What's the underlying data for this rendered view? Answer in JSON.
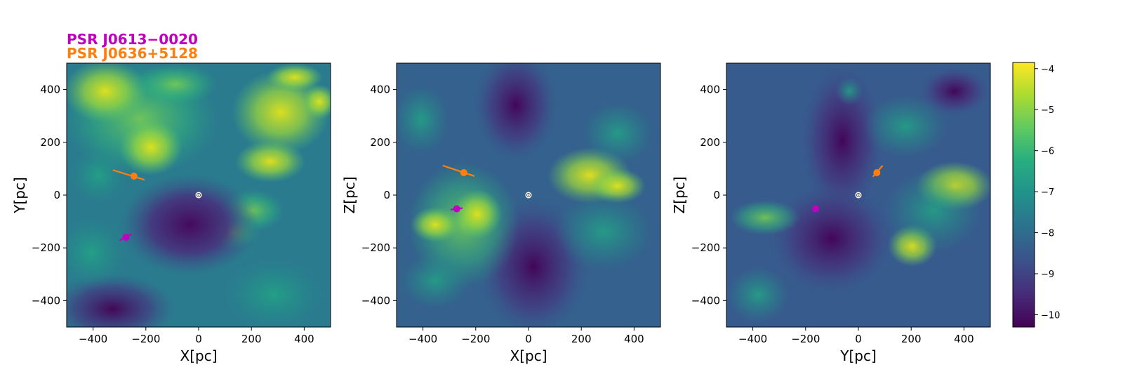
{
  "chart_data": {
    "type": "heatmap",
    "legend": [
      {
        "name": "PSR J0613−0020",
        "color": "#c000c0"
      },
      {
        "name": "PSR J0636+5128",
        "color": "#ff7f0e"
      }
    ],
    "colorbar": {
      "range": [
        -10.3,
        -3.85
      ],
      "ticks": [
        -10,
        -9,
        -8,
        -7,
        -6,
        -5,
        -4
      ],
      "tick_labels": [
        "−10",
        "−9",
        "−8",
        "−7",
        "−6",
        "−5",
        "−4"
      ],
      "colormap": "viridis"
    },
    "panels": [
      {
        "id": "xy",
        "xlabel": "X[pc]",
        "ylabel": "Y[pc]",
        "xlim": [
          -500,
          500
        ],
        "ylim": [
          -500,
          500
        ],
        "xticks": [
          -400,
          -200,
          0,
          200,
          400
        ],
        "yticks": [
          -400,
          -200,
          0,
          200,
          400
        ],
        "xtick_labels": [
          "−400",
          "−200",
          "0",
          "200",
          "400"
        ],
        "ytick_labels": [
          "−400",
          "−200",
          "0",
          "200",
          "400"
        ],
        "pulsars": [
          {
            "name": "PSR J0613−0020",
            "x": -275,
            "y": -160,
            "seg": [
              [
                -300,
                -172
              ],
              [
                -255,
                -148
              ]
            ]
          },
          {
            "name": "PSR J0636+5128",
            "x": -245,
            "y": 72,
            "seg": [
              [
                -325,
                95
              ],
              [
                -205,
                58
              ]
            ]
          }
        ]
      },
      {
        "id": "xz",
        "xlabel": "X[pc]",
        "ylabel": "Z[pc]",
        "xlim": [
          -500,
          500
        ],
        "ylim": [
          -500,
          500
        ],
        "xticks": [
          -400,
          -200,
          0,
          200,
          400
        ],
        "yticks": [
          -400,
          -200,
          0,
          200,
          400
        ],
        "xtick_labels": [
          "−400",
          "−200",
          "0",
          "200",
          "400"
        ],
        "ytick_labels": [
          "−400",
          "−200",
          "0",
          "200",
          "400"
        ],
        "pulsars": [
          {
            "name": "PSR J0613−0020",
            "x": -272,
            "y": -52,
            "seg": [
              [
                -295,
                -55
              ],
              [
                -250,
                -49
              ]
            ]
          },
          {
            "name": "PSR J0636+5128",
            "x": -245,
            "y": 85,
            "seg": [
              [
                -325,
                112
              ],
              [
                -205,
                72
              ]
            ]
          }
        ]
      },
      {
        "id": "yz",
        "xlabel": "Y[pc]",
        "ylabel": "Z[pc]",
        "xlim": [
          -500,
          500
        ],
        "ylim": [
          -500,
          500
        ],
        "xticks": [
          -400,
          -200,
          0,
          200,
          400
        ],
        "yticks": [
          -400,
          -200,
          0,
          200,
          400
        ],
        "xtick_labels": [
          "−400",
          "−200",
          "0",
          "200",
          "400"
        ],
        "ytick_labels": [
          "−400",
          "−200",
          "0",
          "200",
          "400"
        ],
        "pulsars": [
          {
            "name": "PSR J0613−0020",
            "x": -162,
            "y": -52,
            "seg": [
              [
                -174,
                -53
              ],
              [
                -150,
                -51
              ]
            ]
          },
          {
            "name": "PSR J0636+5128",
            "x": 70,
            "y": 85,
            "seg": [
              [
                55,
                70
              ],
              [
                92,
                112
              ]
            ]
          }
        ]
      }
    ]
  }
}
